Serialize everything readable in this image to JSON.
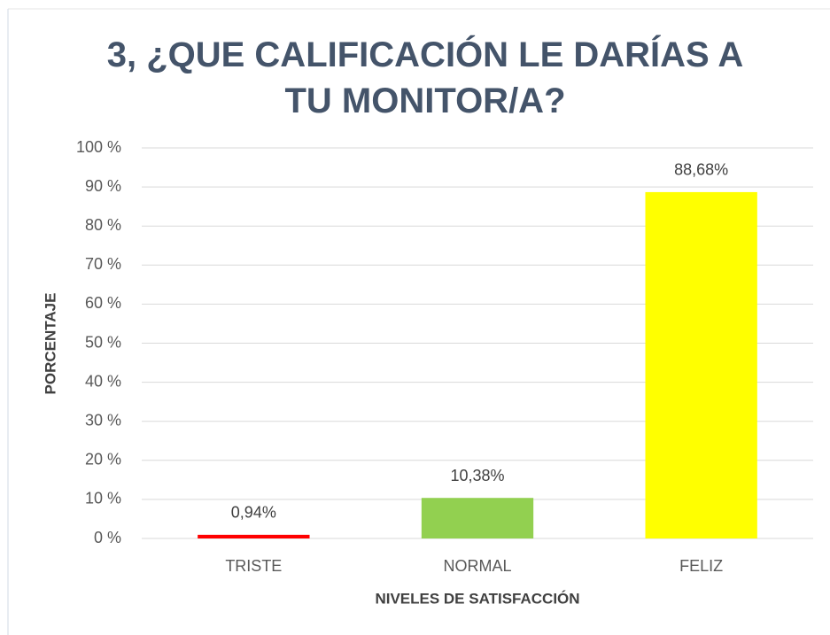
{
  "chart_data": {
    "type": "bar",
    "title": "3, ¿QUE CALIFICACIÓN LE DARÍAS A TU MONITOR/A?",
    "x_label": "NIVELES DE SATISFACCIÓN",
    "y_label": "PORCENTAJE",
    "categories": [
      "TRISTE",
      "NORMAL",
      "FELIZ"
    ],
    "values": [
      0.94,
      10.38,
      88.68
    ],
    "value_labels": [
      "0,94%",
      "10,38%",
      "88,68%"
    ],
    "colors": [
      "#ff0000",
      "#92d050",
      "#ffff00"
    ],
    "ylim": [
      0,
      100
    ],
    "yticks": [
      {
        "value": 0,
        "label": "0 %"
      },
      {
        "value": 10,
        "label": "10 %"
      },
      {
        "value": 20,
        "label": "20 %"
      },
      {
        "value": 30,
        "label": "30 %"
      },
      {
        "value": 40,
        "label": "40 %"
      },
      {
        "value": 50,
        "label": "50 %"
      },
      {
        "value": 60,
        "label": "60 %"
      },
      {
        "value": 70,
        "label": "70 %"
      },
      {
        "value": 80,
        "label": "80 %"
      },
      {
        "value": 90,
        "label": "90 %"
      },
      {
        "value": 100,
        "label": "100 %"
      }
    ],
    "grid": true
  }
}
